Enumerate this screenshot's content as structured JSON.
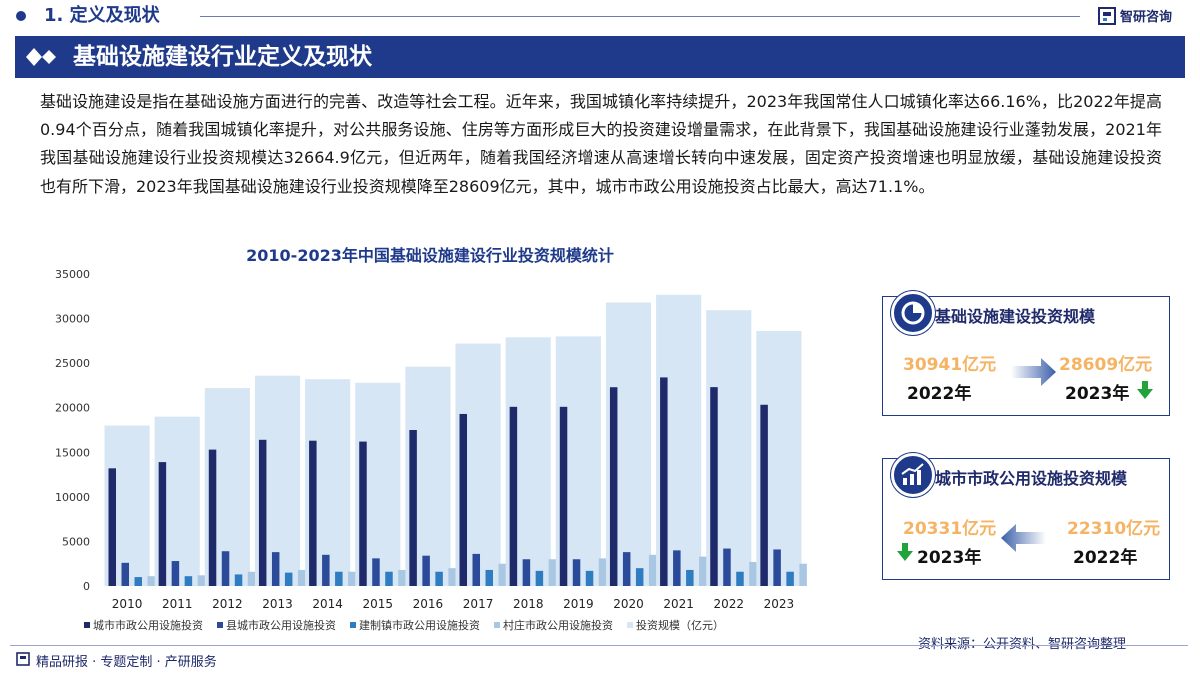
{
  "header": {
    "section_title": "1. 定义及现状",
    "brand": "智研咨询"
  },
  "banner": {
    "title": "基础设施建设行业定义及现状"
  },
  "intro": "基础设施建设是指在基础设施方面进行的完善、改造等社会工程。近年来，我国城镇化率持续提升，2023年我国常住人口城镇化率达66.16%，比2022年提高0.94个百分点，随着我国城镇化率提升，对公共服务设施、住房等方面形成巨大的投资建设增量需求，在此背景下，我国基础设施建设行业蓬勃发展，2021年我国基础设施建设行业投资规模达32664.9亿元，但近两年，随着我国经济增速从高速增长转向中速发展，固定资产投资增速也明显放缓，基础设施建设投资也有所下滑，2023年我国基础设施建设行业投资规模降至28609亿元，其中，城市市政公用设施投资占比最大，高达71.1%。",
  "chart_data": {
    "type": "bar",
    "title": "2010-2023年中国基础设施建设行业投资规模统计",
    "categories": [
      "2010",
      "2011",
      "2012",
      "2013",
      "2014",
      "2015",
      "2016",
      "2017",
      "2018",
      "2019",
      "2020",
      "2021",
      "2022",
      "2023"
    ],
    "ylim": [
      0,
      35000
    ],
    "yticks": [
      0,
      5000,
      10000,
      15000,
      20000,
      25000,
      30000,
      35000
    ],
    "total_series": {
      "name": "投资规模（亿元）",
      "color": "#d6e6f5",
      "values": [
        18000,
        19000,
        22200,
        23600,
        23200,
        22800,
        24600,
        27200,
        27900,
        28000,
        31800,
        32665,
        30941,
        28609
      ]
    },
    "series": [
      {
        "name": "城市市政公用设施投资",
        "color": "#1f2a6b",
        "values": [
          13200,
          13900,
          15300,
          16400,
          16300,
          16200,
          17500,
          19300,
          20100,
          20100,
          22300,
          23400,
          22310,
          20331
        ]
      },
      {
        "name": "县城市政公用设施投资",
        "color": "#2b4a9a",
        "values": [
          2600,
          2800,
          3900,
          3800,
          3500,
          3100,
          3400,
          3600,
          3000,
          3000,
          3800,
          4000,
          4200,
          4100
        ]
      },
      {
        "name": "建制镇市政公用设施投资",
        "color": "#2f7cc0",
        "values": [
          1000,
          1100,
          1300,
          1500,
          1600,
          1600,
          1600,
          1800,
          1700,
          1700,
          2000,
          1800,
          1600,
          1600
        ]
      },
      {
        "name": "村庄市政公用设施投资",
        "color": "#a9c6e3",
        "values": [
          1100,
          1200,
          1600,
          1800,
          1600,
          1800,
          2000,
          2500,
          3000,
          3100,
          3500,
          3300,
          2700,
          2500
        ]
      }
    ],
    "legend_position": "bottom"
  },
  "card1": {
    "title": "基础设施建设投资规模",
    "from_value": "30941亿元",
    "from_year": "2022年",
    "to_value": "28609亿元",
    "to_year": "2023年",
    "trend": "down"
  },
  "card2": {
    "title": "城市市政公用设施投资规模",
    "left_value": "20331亿元",
    "left_year": "2023年",
    "right_value": "22310亿元",
    "right_year": "2022年",
    "trend": "down"
  },
  "source": "资料来源：公开资料、智研咨询整理",
  "footer": "精品研报 · 专题定制 · 产研服务",
  "colors": {
    "brand": "#1f3a8a",
    "value": "#f6b363",
    "down_arrow": "#22a33a"
  }
}
